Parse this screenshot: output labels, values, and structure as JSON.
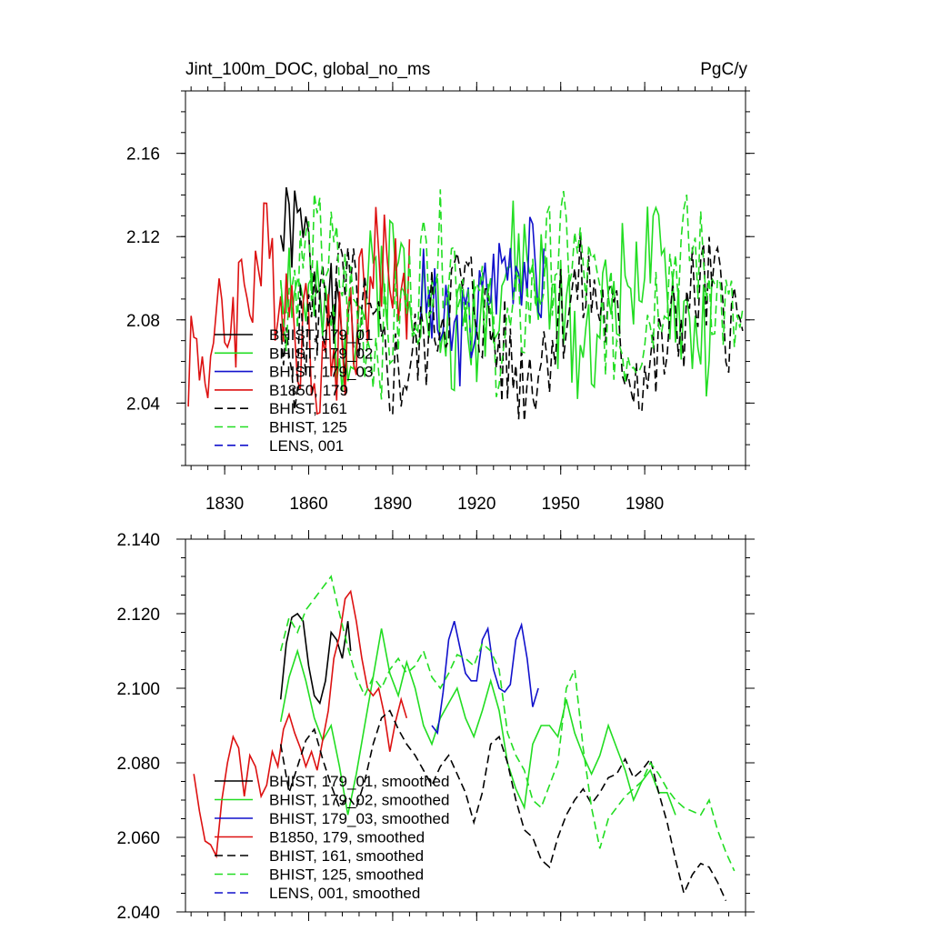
{
  "chart_data": [
    {
      "type": "line",
      "title": "Jint_100m_DOC, global_no_ms",
      "units": "PgC/y",
      "xlim": [
        1816,
        2016
      ],
      "ylim": [
        2.01,
        2.19
      ],
      "xticks": [
        1830,
        1860,
        1890,
        1920,
        1950,
        1980
      ],
      "yticks": [
        2.04,
        2.08,
        2.12,
        2.16
      ],
      "ytick_labels": [
        "2.04",
        "2.08",
        "2.12",
        "2.16"
      ],
      "legend_position": "lower-left",
      "series": [
        {
          "name": "BHIST, 179_01",
          "color": "#000000",
          "dash": "solid",
          "seed": 1,
          "x_start": 1850,
          "x_end": 1876,
          "base": 2.095,
          "amp": 0.028,
          "noise": 0.03
        },
        {
          "name": "BHIST, 179_02",
          "color": "#22dd22",
          "dash": "solid",
          "seed": 2,
          "x_start": 1850,
          "x_end": 2005,
          "base": 2.09,
          "amp": 0.018,
          "noise": 0.038
        },
        {
          "name": "BHIST, 179_03",
          "color": "#1111cc",
          "dash": "solid",
          "seed": 3,
          "x_start": 1900,
          "x_end": 1944,
          "base": 2.092,
          "amp": 0.02,
          "noise": 0.032
        },
        {
          "name": "B1850, 179",
          "color": "#dd1111",
          "dash": "solid",
          "seed": 4,
          "x_start": 1817,
          "x_end": 1896,
          "base": 2.085,
          "amp": 0.022,
          "noise": 0.042
        },
        {
          "name": "BHIST, 161",
          "color": "#000000",
          "dash": "dashed",
          "seed": 5,
          "x_start": 1850,
          "x_end": 2015,
          "base": 2.075,
          "amp": 0.02,
          "noise": 0.036
        },
        {
          "name": "BHIST, 125",
          "color": "#22dd22",
          "dash": "dashed",
          "seed": 6,
          "x_start": 1850,
          "x_end": 2015,
          "base": 2.092,
          "amp": 0.022,
          "noise": 0.036
        },
        {
          "name": "LENS, 001",
          "color": "#1111cc",
          "dash": "dashed",
          "seed": 7,
          "x_start": 0,
          "x_end": 0,
          "base": 2.09,
          "amp": 0,
          "noise": 0
        }
      ]
    },
    {
      "type": "line",
      "title": "",
      "xlim": [
        1816,
        2016
      ],
      "ylim": [
        2.04,
        2.14
      ],
      "xticks": [
        1830,
        1860,
        1890,
        1920,
        1950,
        1980
      ],
      "yticks": [
        2.04,
        2.06,
        2.08,
        2.1,
        2.12,
        2.14
      ],
      "ytick_labels": [
        "2.040",
        "2.060",
        "2.080",
        "2.100",
        "2.120",
        "2.140"
      ],
      "legend_position": "lower-left",
      "series": [
        {
          "name": "BHIST, 179_01, smoothed",
          "color": "#000000",
          "dash": "solid",
          "points": [
            [
              1850,
              2.097
            ],
            [
              1852,
              2.112
            ],
            [
              1854,
              2.119
            ],
            [
              1856,
              2.12
            ],
            [
              1858,
              2.118
            ],
            [
              1860,
              2.106
            ],
            [
              1862,
              2.098
            ],
            [
              1864,
              2.096
            ],
            [
              1866,
              2.102
            ],
            [
              1868,
              2.115
            ],
            [
              1870,
              2.113
            ],
            [
              1872,
              2.108
            ],
            [
              1874,
              2.118
            ],
            [
              1875,
              2.11
            ]
          ]
        },
        {
          "name": "BHIST, 179_02, smoothed",
          "color": "#22dd22",
          "dash": "solid",
          "points": [
            [
              1850,
              2.091
            ],
            [
              1853,
              2.103
            ],
            [
              1856,
              2.11
            ],
            [
              1859,
              2.102
            ],
            [
              1862,
              2.092
            ],
            [
              1865,
              2.086
            ],
            [
              1868,
              2.09
            ],
            [
              1871,
              2.079
            ],
            [
              1874,
              2.066
            ],
            [
              1877,
              2.077
            ],
            [
              1880,
              2.09
            ],
            [
              1883,
              2.103
            ],
            [
              1886,
              2.116
            ],
            [
              1889,
              2.104
            ],
            [
              1892,
              2.098
            ],
            [
              1895,
              2.107
            ],
            [
              1898,
              2.1
            ],
            [
              1901,
              2.09
            ],
            [
              1904,
              2.085
            ],
            [
              1907,
              2.092
            ],
            [
              1910,
              2.096
            ],
            [
              1913,
              2.1
            ],
            [
              1916,
              2.092
            ],
            [
              1919,
              2.087
            ],
            [
              1922,
              2.094
            ],
            [
              1925,
              2.102
            ],
            [
              1928,
              2.094
            ],
            [
              1931,
              2.08
            ],
            [
              1934,
              2.073
            ],
            [
              1937,
              2.068
            ],
            [
              1940,
              2.085
            ],
            [
              1943,
              2.09
            ],
            [
              1946,
              2.09
            ],
            [
              1949,
              2.087
            ],
            [
              1952,
              2.097
            ],
            [
              1955,
              2.088
            ],
            [
              1958,
              2.082
            ],
            [
              1961,
              2.077
            ],
            [
              1964,
              2.082
            ],
            [
              1967,
              2.09
            ],
            [
              1970,
              2.084
            ],
            [
              1973,
              2.078
            ],
            [
              1976,
              2.07
            ],
            [
              1979,
              2.075
            ],
            [
              1982,
              2.078
            ],
            [
              1985,
              2.072
            ],
            [
              1988,
              2.072
            ],
            [
              1991,
              2.066
            ]
          ]
        },
        {
          "name": "BHIST, 179_03, smoothed",
          "color": "#1111cc",
          "dash": "solid",
          "points": [
            [
              1904,
              2.09
            ],
            [
              1906,
              2.088
            ],
            [
              1908,
              2.099
            ],
            [
              1910,
              2.113
            ],
            [
              1912,
              2.118
            ],
            [
              1914,
              2.111
            ],
            [
              1916,
              2.104
            ],
            [
              1918,
              2.102
            ],
            [
              1920,
              2.102
            ],
            [
              1922,
              2.113
            ],
            [
              1924,
              2.116
            ],
            [
              1926,
              2.105
            ],
            [
              1928,
              2.1
            ],
            [
              1930,
              2.099
            ],
            [
              1932,
              2.101
            ],
            [
              1934,
              2.113
            ],
            [
              1936,
              2.117
            ],
            [
              1938,
              2.108
            ],
            [
              1940,
              2.095
            ],
            [
              1942,
              2.1
            ]
          ]
        },
        {
          "name": "B1850, 179, smoothed",
          "color": "#dd1111",
          "dash": "solid",
          "points": [
            [
              1819,
              2.077
            ],
            [
              1821,
              2.067
            ],
            [
              1823,
              2.059
            ],
            [
              1825,
              2.058
            ],
            [
              1827,
              2.055
            ],
            [
              1829,
              2.07
            ],
            [
              1831,
              2.08
            ],
            [
              1833,
              2.087
            ],
            [
              1835,
              2.084
            ],
            [
              1837,
              2.071
            ],
            [
              1839,
              2.082
            ],
            [
              1841,
              2.079
            ],
            [
              1843,
              2.071
            ],
            [
              1845,
              2.074
            ],
            [
              1847,
              2.083
            ],
            [
              1849,
              2.079
            ],
            [
              1851,
              2.089
            ],
            [
              1853,
              2.093
            ],
            [
              1855,
              2.088
            ],
            [
              1857,
              2.084
            ],
            [
              1859,
              2.079
            ],
            [
              1861,
              2.083
            ],
            [
              1863,
              2.078
            ],
            [
              1865,
              2.086
            ],
            [
              1867,
              2.094
            ],
            [
              1869,
              2.108
            ],
            [
              1871,
              2.114
            ],
            [
              1873,
              2.124
            ],
            [
              1875,
              2.126
            ],
            [
              1877,
              2.118
            ],
            [
              1879,
              2.108
            ],
            [
              1881,
              2.1
            ],
            [
              1883,
              2.098
            ],
            [
              1885,
              2.1
            ],
            [
              1887,
              2.093
            ],
            [
              1889,
              2.083
            ],
            [
              1891,
              2.091
            ],
            [
              1893,
              2.097
            ],
            [
              1895,
              2.092
            ]
          ]
        },
        {
          "name": "BHIST, 161, smoothed",
          "color": "#000000",
          "dash": "dashed",
          "points": [
            [
              1850,
              2.085
            ],
            [
              1853,
              2.072
            ],
            [
              1856,
              2.079
            ],
            [
              1859,
              2.086
            ],
            [
              1862,
              2.089
            ],
            [
              1865,
              2.081
            ],
            [
              1868,
              2.074
            ],
            [
              1871,
              2.068
            ],
            [
              1874,
              2.071
            ],
            [
              1877,
              2.068
            ],
            [
              1880,
              2.075
            ],
            [
              1883,
              2.085
            ],
            [
              1886,
              2.092
            ],
            [
              1889,
              2.094
            ],
            [
              1892,
              2.089
            ],
            [
              1895,
              2.085
            ],
            [
              1898,
              2.082
            ],
            [
              1901,
              2.078
            ],
            [
              1904,
              2.074
            ],
            [
              1907,
              2.079
            ],
            [
              1910,
              2.082
            ],
            [
              1913,
              2.077
            ],
            [
              1916,
              2.072
            ],
            [
              1919,
              2.064
            ],
            [
              1922,
              2.072
            ],
            [
              1925,
              2.085
            ],
            [
              1928,
              2.087
            ],
            [
              1931,
              2.08
            ],
            [
              1934,
              2.07
            ],
            [
              1937,
              2.062
            ],
            [
              1940,
              2.06
            ],
            [
              1943,
              2.054
            ],
            [
              1946,
              2.052
            ],
            [
              1949,
              2.06
            ],
            [
              1952,
              2.066
            ],
            [
              1955,
              2.07
            ],
            [
              1958,
              2.073
            ],
            [
              1961,
              2.069
            ],
            [
              1964,
              2.072
            ],
            [
              1967,
              2.076
            ],
            [
              1970,
              2.077
            ],
            [
              1973,
              2.081
            ],
            [
              1976,
              2.076
            ],
            [
              1979,
              2.078
            ],
            [
              1982,
              2.081
            ],
            [
              1985,
              2.072
            ],
            [
              1988,
              2.064
            ],
            [
              1991,
              2.054
            ],
            [
              1994,
              2.045
            ],
            [
              1997,
              2.05
            ],
            [
              2000,
              2.053
            ],
            [
              2003,
              2.052
            ],
            [
              2006,
              2.048
            ],
            [
              2009,
              2.043
            ]
          ]
        },
        {
          "name": "BHIST, 125, smoothed",
          "color": "#22dd22",
          "dash": "dashed",
          "points": [
            [
              1850,
              2.11
            ],
            [
              1853,
              2.119
            ],
            [
              1856,
              2.115
            ],
            [
              1859,
              2.121
            ],
            [
              1862,
              2.124
            ],
            [
              1865,
              2.127
            ],
            [
              1868,
              2.13
            ],
            [
              1871,
              2.12
            ],
            [
              1874,
              2.111
            ],
            [
              1877,
              2.103
            ],
            [
              1880,
              2.098
            ],
            [
              1883,
              2.103
            ],
            [
              1886,
              2.1
            ],
            [
              1889,
              2.105
            ],
            [
              1892,
              2.108
            ],
            [
              1895,
              2.104
            ],
            [
              1898,
              2.106
            ],
            [
              1901,
              2.11
            ],
            [
              1904,
              2.103
            ],
            [
              1907,
              2.1
            ],
            [
              1910,
              2.104
            ],
            [
              1913,
              2.109
            ],
            [
              1916,
              2.108
            ],
            [
              1919,
              2.106
            ],
            [
              1922,
              2.112
            ],
            [
              1925,
              2.11
            ],
            [
              1928,
              2.105
            ],
            [
              1931,
              2.088
            ],
            [
              1934,
              2.082
            ],
            [
              1937,
              2.078
            ],
            [
              1940,
              2.07
            ],
            [
              1943,
              2.068
            ],
            [
              1946,
              2.074
            ],
            [
              1949,
              2.08
            ],
            [
              1952,
              2.1
            ],
            [
              1955,
              2.105
            ],
            [
              1958,
              2.084
            ],
            [
              1961,
              2.068
            ],
            [
              1964,
              2.057
            ],
            [
              1967,
              2.065
            ],
            [
              1970,
              2.068
            ],
            [
              1973,
              2.071
            ],
            [
              1976,
              2.073
            ],
            [
              1979,
              2.075
            ],
            [
              1982,
              2.08
            ],
            [
              1985,
              2.077
            ],
            [
              1988,
              2.073
            ],
            [
              1991,
              2.07
            ],
            [
              1994,
              2.068
            ],
            [
              1997,
              2.067
            ],
            [
              2000,
              2.066
            ],
            [
              2003,
              2.07
            ],
            [
              2006,
              2.062
            ],
            [
              2009,
              2.056
            ],
            [
              2012,
              2.051
            ]
          ]
        },
        {
          "name": "LENS, 001, smoothed",
          "color": "#1111cc",
          "dash": "dashed",
          "points": []
        }
      ]
    }
  ]
}
